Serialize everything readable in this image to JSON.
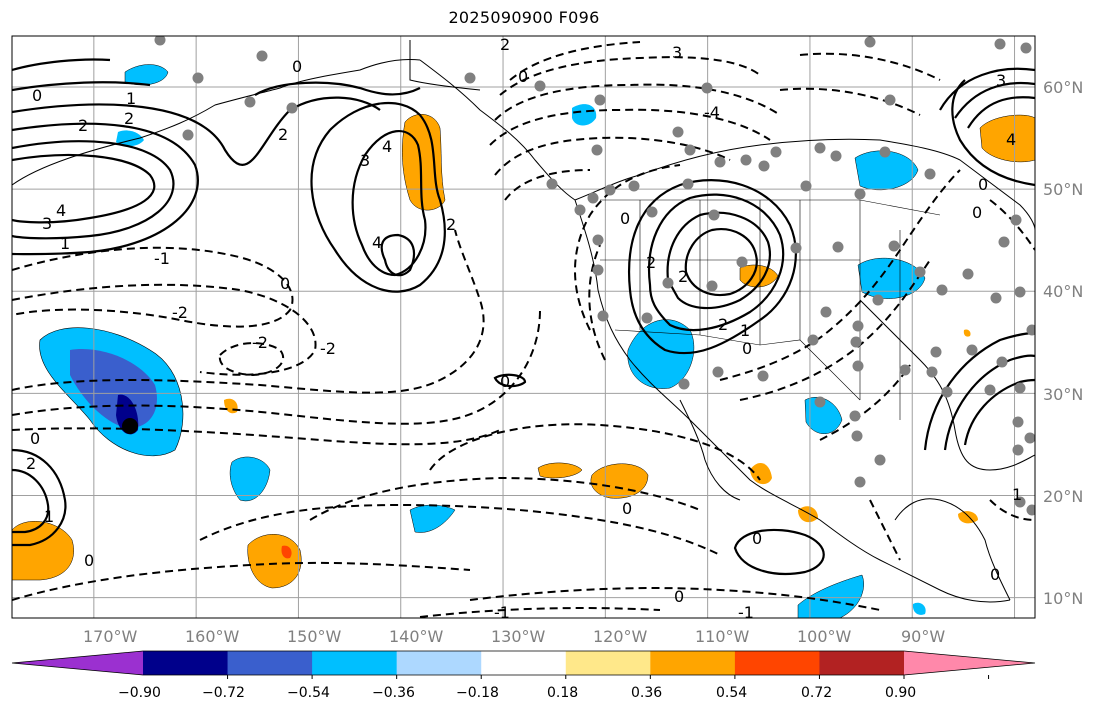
{
  "title": "2025090900 F096",
  "map": {
    "lon_range": [
      -178,
      -78
    ],
    "lat_range": [
      8,
      65
    ],
    "lon_ticks": [
      "170°W",
      "160°W",
      "150°W",
      "140°W",
      "130°W",
      "120°W",
      "110°W",
      "100°W",
      "90°W"
    ],
    "lat_ticks": [
      "10°N",
      "20°N",
      "30°N",
      "40°N",
      "50°N",
      "60°N"
    ],
    "grid": true
  },
  "colorbar": {
    "ticks": [
      "−0.90",
      "−0.72",
      "−0.54",
      "−0.36",
      "−0.18",
      "0.18",
      "0.36",
      "0.54",
      "0.72",
      "0.90"
    ],
    "colors": [
      "#9b30d0",
      "#00008b",
      "#3a5fcd",
      "#00bfff",
      "#add8ff",
      "#ffffff",
      "#ffe88a",
      "#ffa500",
      "#ff4500",
      "#b22222",
      "#ff88aa"
    ],
    "extend": "both"
  },
  "contour_labels": [
    "0",
    "1",
    "2",
    "3",
    "4",
    "-1",
    "-2",
    "-3",
    "-4"
  ],
  "legend_colors": {
    "positive_contour": "#000000",
    "negative_contour": "#000000",
    "grid": "#a0a0a0",
    "station_dot": "#808080"
  }
}
